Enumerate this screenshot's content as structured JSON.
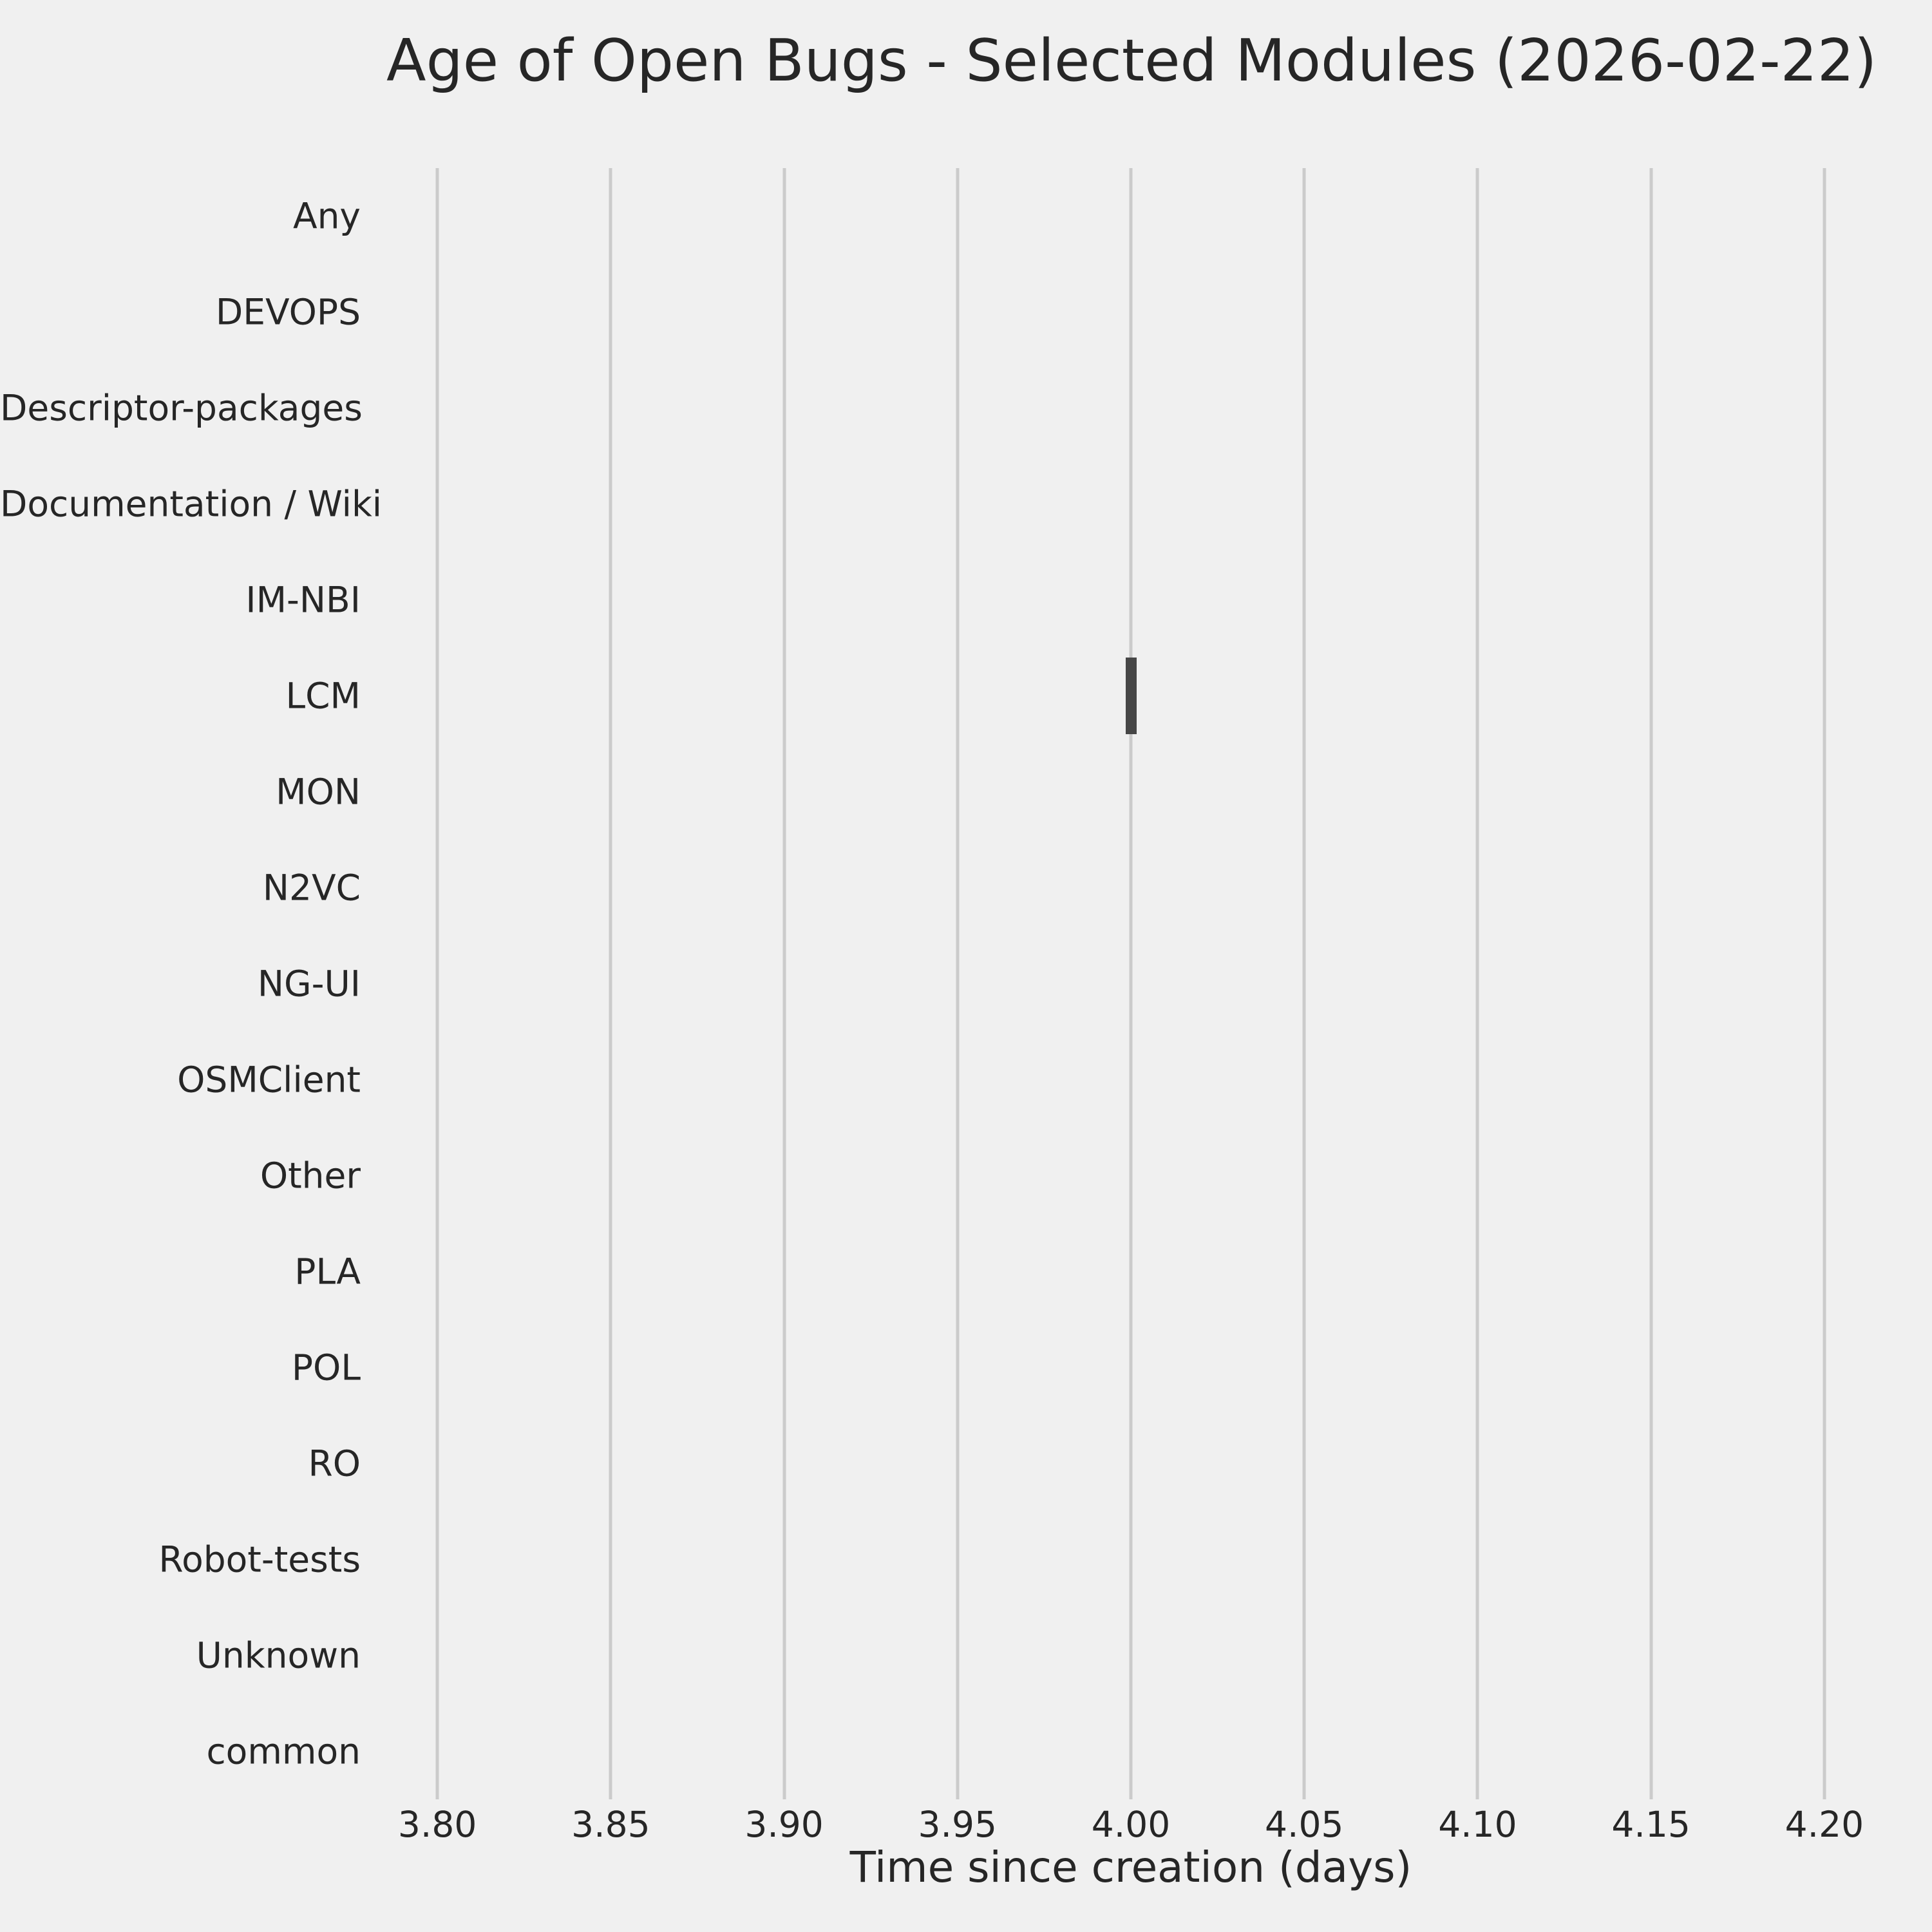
{
  "figure": {
    "background_color": "#f0f0f0",
    "grid_color": "#cbcbcb",
    "box_color": "#464646",
    "text_color": "#262626"
  },
  "chart_data": {
    "type": "boxplot",
    "orientation": "horizontal",
    "title": "Age of Open Bugs - Selected Modules (2026-02-22)",
    "xlabel": "Time since creation (days)",
    "ylabel": "",
    "categories": [
      "Any",
      "DEVOPS",
      "Descriptor-packages",
      "Documentation / Wiki",
      "IM-NBI",
      "LCM",
      "MON",
      "N2VC",
      "NG-UI",
      "OSMClient",
      "Other",
      "PLA",
      "POL",
      "RO",
      "Robot-tests",
      "Unknown",
      "common"
    ],
    "xlim": [
      3.7853,
      4.2147
    ],
    "xticks": [
      3.8,
      3.85,
      3.9,
      3.95,
      4.0,
      4.05,
      4.1,
      4.15,
      4.2
    ],
    "xtick_labels": [
      "3.80",
      "3.85",
      "3.90",
      "3.95",
      "4.00",
      "4.05",
      "4.10",
      "4.15",
      "4.20"
    ],
    "grid": "vertical",
    "legend": "none",
    "boxes": [
      {
        "category": "LCM",
        "whisker_low": 4.0,
        "q1": 4.0,
        "median": 4.0,
        "q3": 4.0,
        "whisker_high": 4.0,
        "value_days": 4.0
      }
    ]
  }
}
